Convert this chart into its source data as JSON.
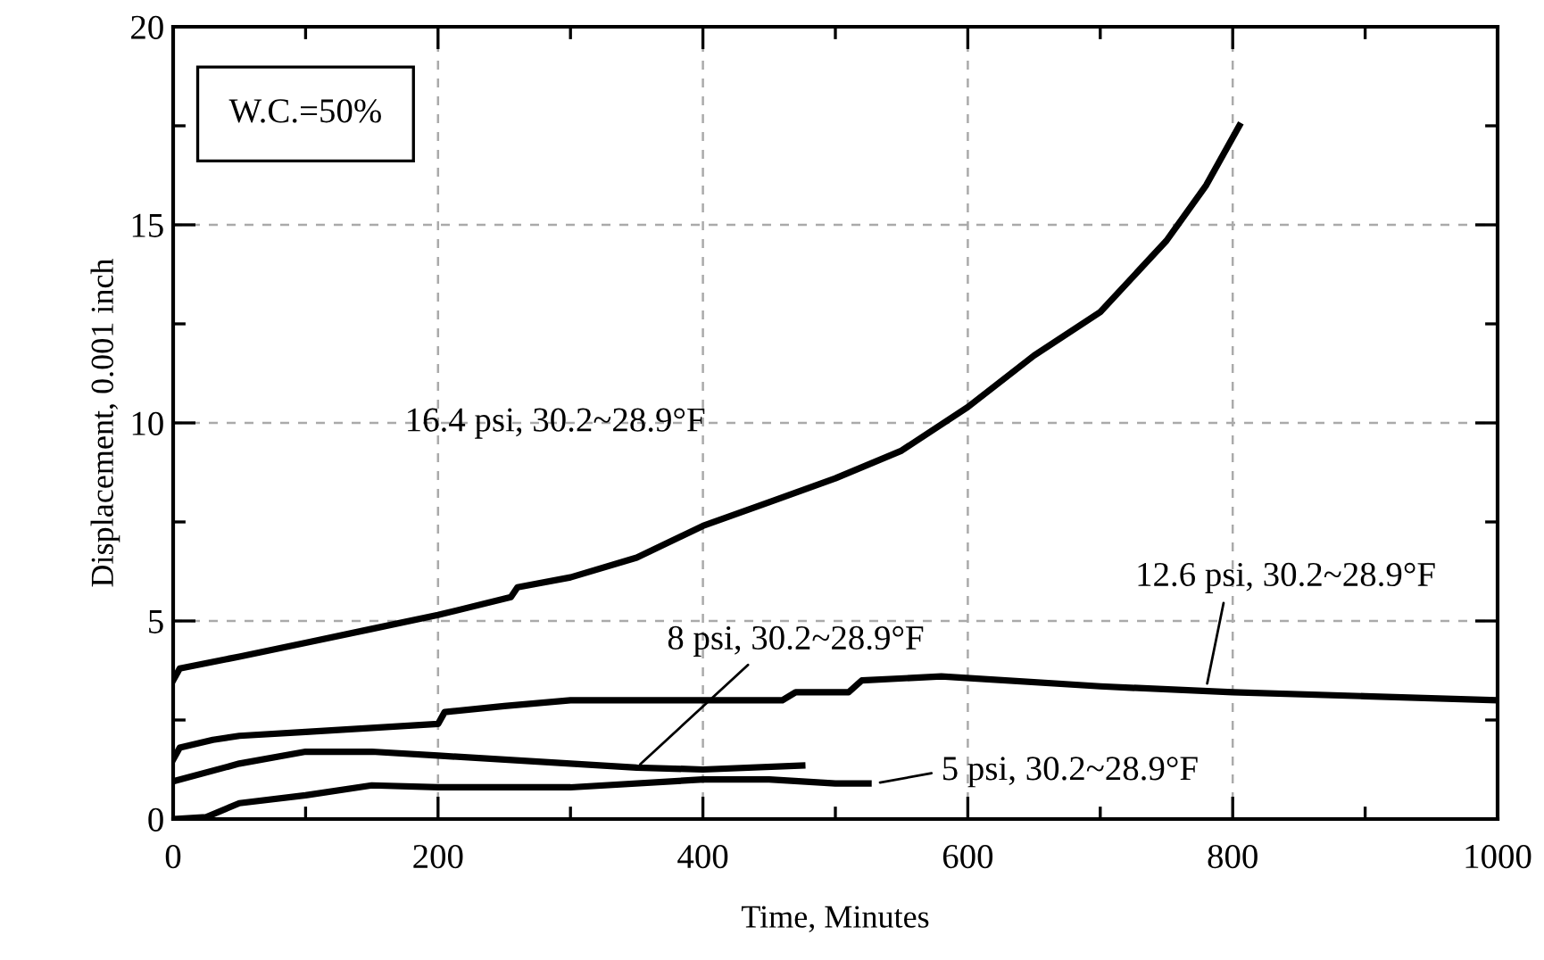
{
  "chart_data": {
    "type": "line",
    "xlabel": "Time, Minutes",
    "ylabel": "Displacement, 0.001 inch",
    "xlim": [
      0,
      1000
    ],
    "ylim": [
      0,
      20
    ],
    "xticks": [
      0,
      200,
      400,
      600,
      800,
      1000
    ],
    "yticks": [
      0,
      5,
      10,
      15,
      20
    ],
    "grid": true,
    "legend": false,
    "marker": "none",
    "line_style": "solid",
    "series": [
      {
        "color": "#000000",
        "x": [
          0,
          5,
          50,
          100,
          150,
          200,
          255,
          260,
          300,
          350,
          400,
          450,
          500,
          550,
          600,
          650,
          700,
          750,
          780,
          805
        ],
        "values": [
          3.5,
          3.8,
          4.1,
          4.45,
          4.8,
          5.15,
          5.6,
          5.85,
          6.1,
          6.6,
          7.4,
          8.0,
          8.6,
          9.3,
          10.4,
          11.7,
          12.8,
          14.6,
          16.0,
          17.5
        ]
      },
      {
        "color": "#000000",
        "x": [
          0,
          5,
          30,
          50,
          100,
          200,
          205,
          250,
          300,
          400,
          460,
          470,
          510,
          520,
          580,
          700,
          800,
          900,
          1000
        ],
        "values": [
          1.5,
          1.8,
          2.0,
          2.1,
          2.2,
          2.4,
          2.7,
          2.85,
          3.0,
          3.0,
          3.0,
          3.2,
          3.2,
          3.5,
          3.6,
          3.35,
          3.2,
          3.1,
          3.0
        ]
      },
      {
        "color": "#000000",
        "x": [
          0,
          50,
          100,
          150,
          200,
          300,
          350,
          400,
          475
        ],
        "values": [
          0.95,
          1.4,
          1.7,
          1.7,
          1.6,
          1.4,
          1.3,
          1.25,
          1.35
        ]
      },
      {
        "color": "#000000",
        "x": [
          0,
          25,
          50,
          100,
          150,
          200,
          300,
          400,
          450,
          500,
          525
        ],
        "values": [
          0.0,
          0.05,
          0.4,
          0.6,
          0.85,
          0.8,
          0.8,
          1.0,
          1.0,
          0.9,
          0.9
        ]
      }
    ],
    "annotations": [
      "W.C.=50%",
      "16.4 psi, 30.2~28.9°F",
      {
        "text": "12.6 psi, 30.2~28.9°F",
        "x": 780,
        "y": 3.3
      },
      {
        "text": "8 psi, 30.2~28.9°F",
        "x": 350,
        "y": 1.3
      },
      {
        "text": "5 psi, 30.2~28.9°F",
        "x": 530,
        "y": 0.9
      }
    ]
  }
}
